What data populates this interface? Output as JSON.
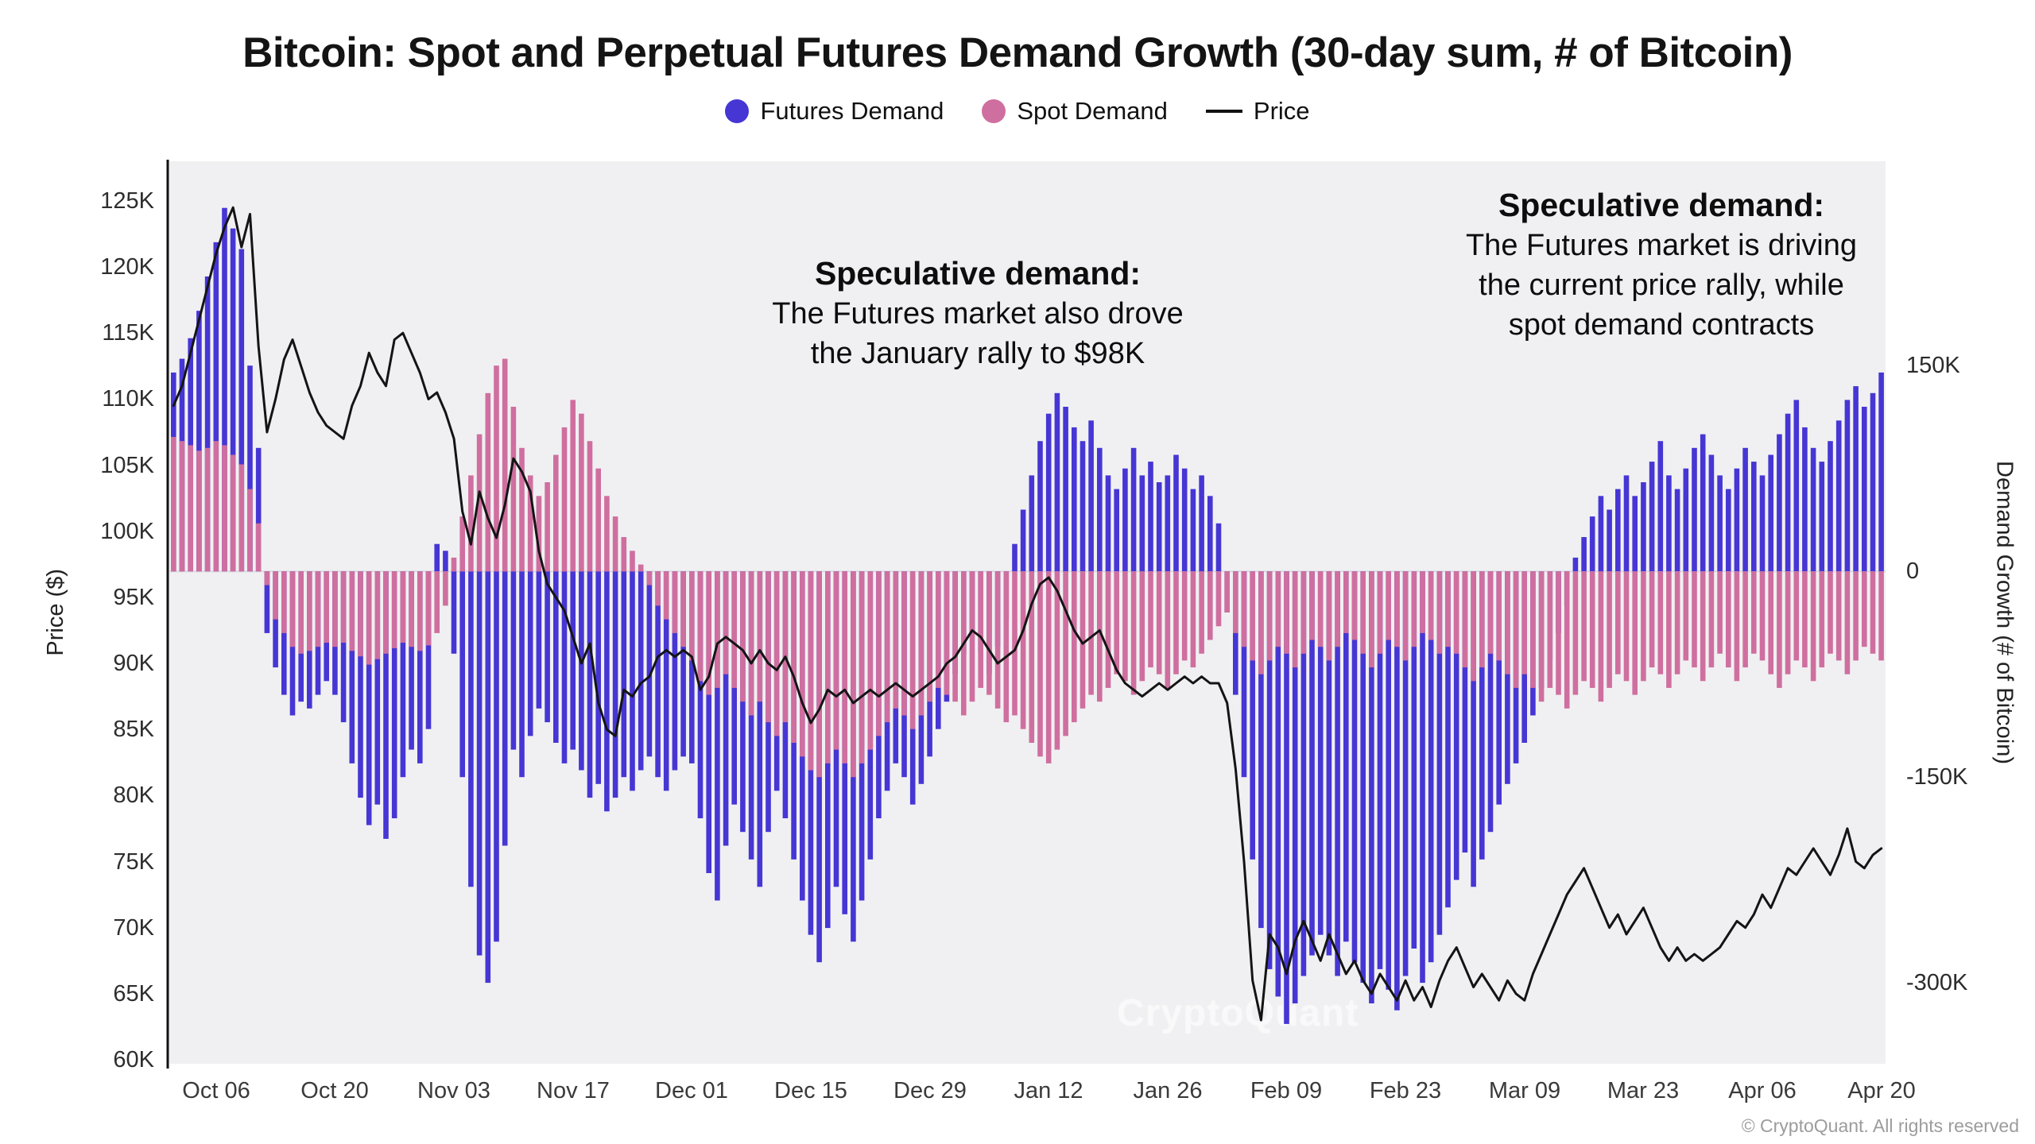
{
  "page": {
    "title": "Bitcoin: Spot and Perpetual Futures Demand Growth (30-day sum, # of Bitcoin)",
    "watermark": "CryptoQuant",
    "footer": "© CryptoQuant. All rights reserved"
  },
  "legend": {
    "futures_label": "Futures Demand",
    "spot_label": "Spot Demand",
    "price_label": "Price"
  },
  "annotations": {
    "center": {
      "title": "Speculative demand:",
      "line1": "The Futures market also drove",
      "line2": "the January rally to $98K"
    },
    "right": {
      "title": "Speculative demand:",
      "line1": "The Futures market is driving",
      "line2": "the current price rally, while",
      "line3": "spot demand contracts"
    }
  },
  "colors": {
    "futures": "#4636d4",
    "spot": "#cf6f9f",
    "price": "#141414",
    "plot_bg": "#f0f0f2"
  },
  "chart_data": {
    "type": "bar+line",
    "title": "Bitcoin: Spot and Perpetual Futures Demand Growth (30-day sum, # of Bitcoin)",
    "units": {
      "price": "K USD",
      "demand": "K BTC"
    },
    "x_tick_labels": [
      "Oct 06",
      "Oct 20",
      "Nov 03",
      "Nov 17",
      "Dec 01",
      "Dec 15",
      "Dec 29",
      "Jan 12",
      "Jan 26",
      "Feb 09",
      "Feb 23",
      "Mar 09",
      "Mar 23",
      "Apr 06",
      "Apr 20"
    ],
    "x_tick_indices": [
      5,
      19,
      33,
      47,
      61,
      75,
      89,
      103,
      117,
      131,
      145,
      159,
      173,
      187,
      201
    ],
    "left_axis": {
      "title": "Price ($)",
      "tick_labels": [
        "125K",
        "120K",
        "115K",
        "110K",
        "105K",
        "100K",
        "95K",
        "90K",
        "85K",
        "80K",
        "75K",
        "70K",
        "65K",
        "60K"
      ],
      "tick_values": [
        125,
        120,
        115,
        110,
        105,
        100,
        95,
        90,
        85,
        80,
        75,
        70,
        65,
        60
      ],
      "range": [
        59.7,
        128.0
      ]
    },
    "right_axis": {
      "title": "Demand Growth (# of Bitcoin)",
      "tick_labels": [
        "150K",
        "0",
        "-150K",
        "-300K"
      ],
      "tick_values": [
        150,
        0,
        -150,
        -300
      ],
      "range": [
        -359,
        299
      ]
    },
    "series": [
      {
        "name": "Futures Demand",
        "type": "bar",
        "axis": "right",
        "color": "#4636d4",
        "values": [
          145,
          155,
          170,
          190,
          215,
          240,
          265,
          250,
          235,
          150,
          90,
          -45,
          -70,
          -90,
          -105,
          -95,
          -100,
          -90,
          -80,
          -90,
          -110,
          -140,
          -165,
          -185,
          -170,
          -195,
          -180,
          -150,
          -130,
          -140,
          -115,
          20,
          15,
          -60,
          -150,
          -230,
          -280,
          -300,
          -270,
          -200,
          -130,
          -150,
          -120,
          -100,
          -110,
          -125,
          -140,
          -130,
          -145,
          -165,
          -155,
          -175,
          -165,
          -150,
          -160,
          -145,
          -135,
          -150,
          -160,
          -145,
          -135,
          -140,
          -180,
          -220,
          -240,
          -200,
          -170,
          -190,
          -210,
          -230,
          -190,
          -160,
          -180,
          -210,
          -240,
          -265,
          -285,
          -260,
          -230,
          -250,
          -270,
          -240,
          -210,
          -180,
          -160,
          -140,
          -150,
          -170,
          -155,
          -135,
          -115,
          -95,
          -75,
          -60,
          -45,
          -60,
          -75,
          -55,
          -35,
          20,
          45,
          70,
          95,
          115,
          130,
          120,
          105,
          95,
          110,
          90,
          70,
          60,
          75,
          90,
          70,
          80,
          65,
          70,
          85,
          75,
          60,
          70,
          55,
          35,
          -30,
          -90,
          -150,
          -210,
          -260,
          -290,
          -310,
          -330,
          -315,
          -295,
          -280,
          -265,
          -280,
          -295,
          -270,
          -285,
          -300,
          -315,
          -290,
          -305,
          -320,
          -295,
          -275,
          -300,
          -285,
          -265,
          -245,
          -225,
          -205,
          -230,
          -210,
          -190,
          -170,
          -155,
          -140,
          -125,
          -105,
          -85,
          -65,
          -45,
          -25,
          10,
          25,
          40,
          55,
          45,
          60,
          70,
          55,
          65,
          80,
          95,
          70,
          60,
          75,
          90,
          100,
          85,
          70,
          60,
          75,
          90,
          80,
          70,
          85,
          100,
          115,
          125,
          105,
          90,
          80,
          95,
          110,
          125,
          135,
          120,
          130,
          145
        ]
      },
      {
        "name": "Spot Demand",
        "type": "bar",
        "axis": "right",
        "color": "#cf6f9f",
        "values": [
          98,
          95,
          92,
          88,
          90,
          95,
          92,
          85,
          78,
          60,
          35,
          -10,
          -35,
          -45,
          -55,
          -60,
          -58,
          -55,
          -52,
          -55,
          -52,
          -58,
          -62,
          -68,
          -64,
          -60,
          -56,
          -52,
          -55,
          -58,
          -54,
          -45,
          -25,
          10,
          40,
          70,
          100,
          130,
          150,
          155,
          120,
          90,
          70,
          55,
          65,
          85,
          105,
          125,
          115,
          95,
          75,
          55,
          40,
          25,
          15,
          5,
          -10,
          -25,
          -35,
          -45,
          -55,
          -65,
          -80,
          -90,
          -85,
          -75,
          -85,
          -95,
          -105,
          -95,
          -110,
          -120,
          -110,
          -125,
          -135,
          -145,
          -150,
          -140,
          -130,
          -140,
          -150,
          -140,
          -130,
          -120,
          -110,
          -100,
          -105,
          -115,
          -105,
          -95,
          -85,
          -90,
          -95,
          -105,
          -95,
          -85,
          -90,
          -100,
          -110,
          -105,
          -115,
          -125,
          -135,
          -140,
          -130,
          -120,
          -110,
          -100,
          -90,
          -95,
          -85,
          -75,
          -80,
          -90,
          -80,
          -70,
          -75,
          -85,
          -75,
          -65,
          -70,
          -60,
          -50,
          -40,
          -30,
          -45,
          -55,
          -65,
          -75,
          -65,
          -55,
          -60,
          -70,
          -60,
          -50,
          -55,
          -65,
          -55,
          -45,
          -50,
          -60,
          -70,
          -60,
          -50,
          -55,
          -65,
          -55,
          -45,
          -50,
          -60,
          -55,
          -60,
          -70,
          -80,
          -70,
          -60,
          -65,
          -75,
          -85,
          -75,
          -85,
          -95,
          -85,
          -90,
          -100,
          -90,
          -80,
          -85,
          -95,
          -85,
          -75,
          -80,
          -90,
          -80,
          -70,
          -75,
          -85,
          -75,
          -65,
          -70,
          -80,
          -70,
          -60,
          -70,
          -80,
          -70,
          -60,
          -65,
          -75,
          -85,
          -75,
          -65,
          -70,
          -80,
          -70,
          -60,
          -65,
          -75,
          -65,
          -55,
          -60,
          -65
        ]
      },
      {
        "name": "Price",
        "type": "line",
        "axis": "left",
        "color": "#141414",
        "values": [
          109.5,
          111,
          113.5,
          116,
          118.5,
          121,
          123,
          124.5,
          121.5,
          124,
          114,
          107.5,
          110,
          113,
          114.5,
          112.5,
          110.5,
          109,
          108,
          107.5,
          107,
          109.5,
          111,
          113.5,
          112,
          111,
          114.5,
          115,
          113.5,
          112,
          110,
          110.5,
          109,
          107,
          101.5,
          99,
          103,
          101,
          99.5,
          102,
          105.5,
          104.5,
          103,
          98.5,
          96,
          95,
          94,
          92,
          90,
          91.5,
          87,
          85,
          84.5,
          88,
          87.5,
          88.5,
          89,
          90.5,
          91,
          90.5,
          91,
          90.5,
          88,
          89,
          91.5,
          92,
          91.5,
          91,
          90,
          91,
          90,
          89.5,
          90.5,
          89,
          87,
          85.5,
          86.5,
          88,
          87.5,
          88,
          87,
          87.5,
          88,
          87.5,
          88,
          88.5,
          88,
          87.5,
          88,
          88.5,
          89,
          90,
          90.5,
          91.5,
          92.5,
          92,
          91,
          90,
          90.5,
          91,
          92.5,
          94.5,
          96,
          96.5,
          95.5,
          94,
          92.5,
          91.5,
          92,
          92.5,
          91,
          89.5,
          88.5,
          88,
          87.5,
          88,
          88.5,
          88,
          88.5,
          89,
          88.5,
          89,
          88.5,
          88.5,
          87,
          82,
          75,
          66,
          63,
          69.5,
          68.5,
          66.5,
          69,
          70.5,
          69,
          67.5,
          69.5,
          68,
          66.5,
          67.5,
          66,
          65,
          66.5,
          65.5,
          64.5,
          66,
          64.5,
          65.5,
          64,
          66,
          67.5,
          68.5,
          67,
          65.5,
          66.5,
          65.5,
          64.5,
          66,
          65,
          64.5,
          66.5,
          68,
          69.5,
          71,
          72.5,
          73.5,
          74.5,
          73,
          71.5,
          70,
          71,
          69.5,
          70.5,
          71.5,
          70,
          68.5,
          67.5,
          68.5,
          67.5,
          68,
          67.5,
          68,
          68.5,
          69.5,
          70.5,
          70,
          71,
          72.5,
          71.5,
          73,
          74.5,
          74,
          75,
          76,
          75,
          74,
          75.5,
          77.5,
          75,
          74.5,
          75.5,
          76
        ]
      }
    ]
  }
}
